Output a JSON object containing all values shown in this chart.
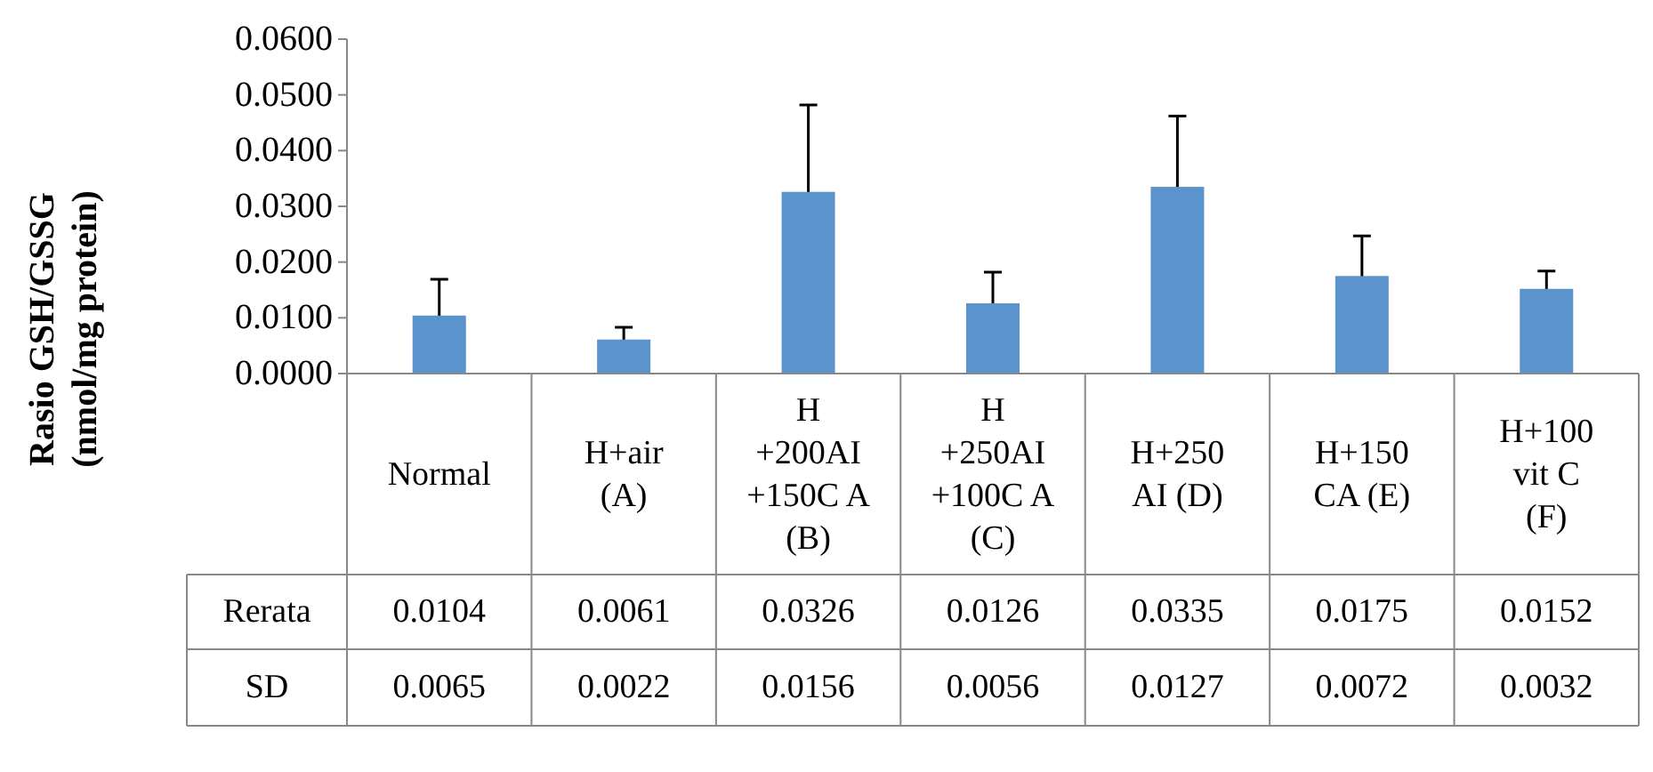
{
  "chart_data": {
    "type": "bar",
    "ylabel": "Rasio GSH/GSSG (nmol/mg protein)",
    "categories": [
      "Normal",
      "H+air (A)",
      "H +200AI +150C A (B)",
      "H +250AI +100C A (C)",
      "H+250 AI (D)",
      "H+150 CA (E)",
      "H+100 vit C (F)"
    ],
    "color": "#5b93cd",
    "values": [
      0.0104,
      0.0061,
      0.0326,
      0.0126,
      0.0335,
      0.0175,
      0.0152
    ],
    "errors": [
      0.0065,
      0.0022,
      0.0156,
      0.0056,
      0.0127,
      0.0072,
      0.0032
    ],
    "grid": false,
    "ylim": [
      0,
      0.06
    ],
    "yticks": [
      {
        "value": 0,
        "label": "0.0000"
      },
      {
        "value": 0.01,
        "label": "0.0100"
      },
      {
        "value": 0.02,
        "label": "0.0200"
      },
      {
        "value": 0.03,
        "label": "0.0300"
      },
      {
        "value": 0.04,
        "label": "0.0400"
      },
      {
        "value": 0.05,
        "label": "0.0500"
      },
      {
        "value": 0.06,
        "label": "0.0600"
      }
    ],
    "annotations": [
      "Rerata",
      "SD",
      "0.0065",
      "0.0022",
      "0.0156",
      "0.0056",
      "0.0127",
      "0.0072",
      "0.0032"
    ],
    "data_labels": true
  }
}
